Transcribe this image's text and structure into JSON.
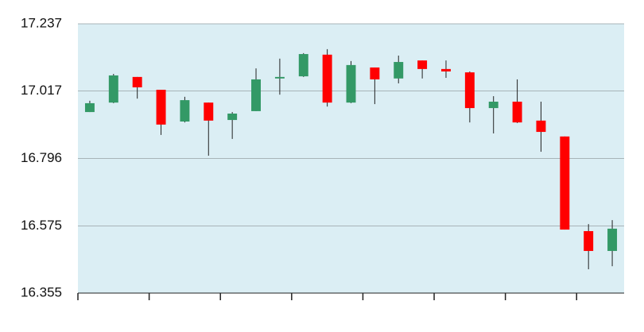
{
  "chart_data": {
    "type": "candlestick",
    "categories": [
      null,
      null,
      null,
      null,
      null,
      null,
      null,
      null,
      null,
      null,
      null,
      null,
      null,
      null,
      null,
      null,
      null,
      null,
      null,
      null,
      null,
      null,
      null
    ],
    "open": [
      16.948,
      16.979,
      17.063,
      17.021,
      16.917,
      16.979,
      16.922,
      16.951,
      17.058,
      17.065,
      17.136,
      16.979,
      17.094,
      17.058,
      17.117,
      17.089,
      17.078,
      16.961,
      16.982,
      16.92,
      16.868,
      16.558,
      16.493
    ],
    "high": [
      16.985,
      17.073,
      17.063,
      17.021,
      16.998,
      16.979,
      16.948,
      17.091,
      17.123,
      17.141,
      17.154,
      17.115,
      17.094,
      17.133,
      17.117,
      17.117,
      17.081,
      17.0,
      17.055,
      16.982,
      16.868,
      16.581,
      16.594
    ],
    "low": [
      16.948,
      16.977,
      16.992,
      16.873,
      16.914,
      16.805,
      16.86,
      16.951,
      17.005,
      17.063,
      16.966,
      16.977,
      16.974,
      17.042,
      17.058,
      17.06,
      16.914,
      16.878,
      16.912,
      16.818,
      16.563,
      16.433,
      16.443
    ],
    "close": [
      16.977,
      17.068,
      17.029,
      16.907,
      16.987,
      16.92,
      16.943,
      17.055,
      17.063,
      17.138,
      16.979,
      17.102,
      17.055,
      17.112,
      17.089,
      17.081,
      16.961,
      16.982,
      16.914,
      16.883,
      16.563,
      16.493,
      16.566
    ],
    "up_color": "#339966",
    "down_color": "#ff0000",
    "ylim": [
      16.355,
      17.237
    ],
    "yticks": [
      16.355,
      16.575,
      16.796,
      17.017,
      17.237
    ],
    "grid": true
  }
}
